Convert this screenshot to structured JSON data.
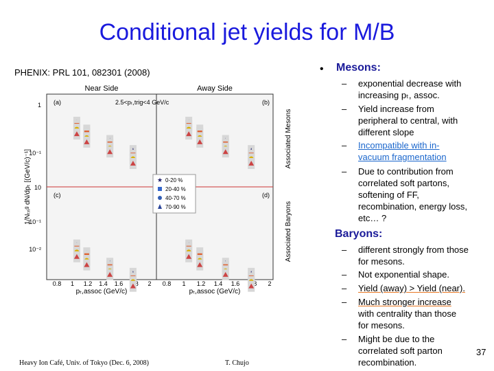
{
  "slide": {
    "title": "Conditional jet yields for M/B",
    "citation": "PHENIX: PRL 101, 082301 (2008)",
    "footer_left": "Heavy Ion Café, Univ. of Tokyo (Dec. 6, 2008)",
    "footer_center": "T. Chujo",
    "page_number": "37"
  },
  "mesons": {
    "bullet": "•",
    "heading": "Mesons:",
    "items": [
      {
        "dash": "–",
        "lines": [
          "exponential decrease with",
          "increasing pₜ, assoc."
        ]
      },
      {
        "dash": "–",
        "lines": [
          "Yield increase from",
          "peripheral to central, with",
          "different slope"
        ]
      },
      {
        "dash": "–",
        "lines": [
          "Incompatible with in-",
          "vacuum fragmentation"
        ]
      },
      {
        "dash": "–",
        "lines": [
          "Due to contribution from",
          "correlated soft partons,",
          "softening of FF,",
          "recombination, energy loss,",
          "etc… ?"
        ]
      }
    ]
  },
  "baryons": {
    "heading": "Baryons:",
    "items": [
      {
        "dash": "–",
        "lines": [
          "different strongly from those",
          "for mesons."
        ]
      },
      {
        "dash": "–",
        "lines": [
          "Not exponential shape."
        ]
      },
      {
        "dash": "–",
        "lines": [
          "Yield (away) > Yield (near)."
        ]
      },
      {
        "dash": "–",
        "lines": [
          "Much stronger increase",
          "with centrality than those",
          "for mesons."
        ]
      },
      {
        "dash": "–",
        "lines": [
          "Might be due to the",
          "correlated soft parton",
          "recombination."
        ]
      }
    ]
  },
  "figure": {
    "near_side": "Near Side",
    "away_side": "Away Side",
    "trigger_label": "2.5<pₜ,trig<4 GeV/c",
    "ylabel": "1/Nₜᵣᵢᵍ dN/dpₜ [(GeV/c)⁻¹]",
    "right_top": "Associated Mesons",
    "right_bottom": "Associated Baryons",
    "panels": [
      "(a)",
      "(b)",
      "(c)",
      "(d)"
    ],
    "xlabel": "pₜ,assoc (GeV/c)",
    "y_ticks": [
      "1",
      "10⁻¹",
      "10",
      "10⁻¹",
      "10⁻²"
    ],
    "x_ticks": [
      "0.8",
      "1",
      "1.2",
      "1.4",
      "1.6",
      "1.8",
      "2"
    ]
  },
  "chart_data": {
    "type": "scatter",
    "title": "",
    "legend": [
      "0-20 %",
      "20-40 %",
      "40-70 %",
      "70-90 %"
    ],
    "legend_colors": [
      "#1a1a66",
      "#3366cc",
      "#2f5cb3",
      "#2a4499"
    ],
    "x_values": [
      1.0,
      1.15,
      1.5,
      1.85
    ],
    "series": [
      {
        "name": "0-20 %",
        "marker": "star",
        "values": [
          0.32,
          0.21,
          0.12,
          0.07
        ]
      },
      {
        "name": "20-40 %",
        "marker": "square",
        "values": [
          0.27,
          0.18,
          0.1,
          0.055
        ]
      },
      {
        "name": "40-70 %",
        "marker": "circle",
        "values": [
          0.22,
          0.14,
          0.08,
          0.045
        ]
      },
      {
        "name": "70-90 %",
        "marker": "triangle",
        "values": [
          0.17,
          0.11,
          0.065,
          0.035
        ]
      }
    ],
    "xlim": [
      0.7,
      2.1
    ],
    "ylim_log": [
      0.01,
      1
    ],
    "legend_position": "middle",
    "grid": false
  }
}
